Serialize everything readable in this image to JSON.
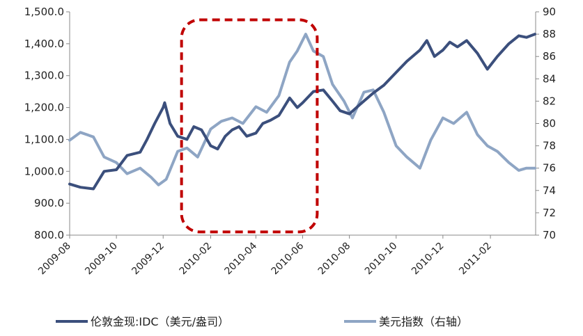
{
  "chart_data": {
    "type": "line",
    "title": "",
    "x_range": [
      "2009-08",
      "2011-03"
    ],
    "x_ticks": [
      "2009-08",
      "2009-10",
      "2009-12",
      "2010-02",
      "2010-04",
      "2010-06",
      "2010-08",
      "2010-10",
      "2010-12",
      "2011-02"
    ],
    "y_left": {
      "range": [
        800,
        1500
      ],
      "ticks": [
        "800.0",
        "900.0",
        "1,000.0",
        "1,100.0",
        "1,200.0",
        "1,300.0",
        "1,400.0",
        "1,500.0"
      ]
    },
    "y_right": {
      "range": [
        70,
        90
      ],
      "ticks": [
        "70",
        "72",
        "74",
        "76",
        "78",
        "80",
        "82",
        "84",
        "86",
        "88",
        "90"
      ]
    },
    "grid": false,
    "legend_position": "bottom",
    "series": [
      {
        "name": "伦敦金现:IDC（美元/盎司）",
        "axis": "left",
        "color": "#3b4f7c",
        "points": [
          [
            "2009-08-01",
            960
          ],
          [
            "2009-08-15",
            950
          ],
          [
            "2009-09-01",
            945
          ],
          [
            "2009-09-15",
            1000
          ],
          [
            "2009-10-01",
            1005
          ],
          [
            "2009-10-15",
            1050
          ],
          [
            "2009-11-01",
            1060
          ],
          [
            "2009-11-10",
            1100
          ],
          [
            "2009-11-20",
            1150
          ],
          [
            "2009-12-01",
            1200
          ],
          [
            "2009-12-03",
            1215
          ],
          [
            "2009-12-10",
            1150
          ],
          [
            "2009-12-20",
            1110
          ],
          [
            "2010-01-01",
            1100
          ],
          [
            "2010-01-10",
            1140
          ],
          [
            "2010-01-20",
            1130
          ],
          [
            "2010-02-01",
            1080
          ],
          [
            "2010-02-10",
            1070
          ],
          [
            "2010-02-20",
            1110
          ],
          [
            "2010-03-01",
            1130
          ],
          [
            "2010-03-10",
            1140
          ],
          [
            "2010-03-20",
            1110
          ],
          [
            "2010-04-01",
            1120
          ],
          [
            "2010-04-10",
            1150
          ],
          [
            "2010-04-20",
            1160
          ],
          [
            "2010-05-01",
            1175
          ],
          [
            "2010-05-15",
            1230
          ],
          [
            "2010-05-25",
            1200
          ],
          [
            "2010-06-01",
            1215
          ],
          [
            "2010-06-15",
            1250
          ],
          [
            "2010-06-28",
            1255
          ],
          [
            "2010-07-10",
            1220
          ],
          [
            "2010-07-20",
            1190
          ],
          [
            "2010-08-01",
            1180
          ],
          [
            "2010-08-15",
            1210
          ],
          [
            "2010-09-01",
            1245
          ],
          [
            "2010-09-15",
            1270
          ],
          [
            "2010-10-01",
            1310
          ],
          [
            "2010-10-15",
            1345
          ],
          [
            "2010-11-01",
            1380
          ],
          [
            "2010-11-10",
            1410
          ],
          [
            "2010-11-20",
            1360
          ],
          [
            "2010-12-01",
            1380
          ],
          [
            "2010-12-10",
            1405
          ],
          [
            "2010-12-20",
            1390
          ],
          [
            "2011-01-01",
            1410
          ],
          [
            "2011-01-15",
            1370
          ],
          [
            "2011-01-28",
            1320
          ],
          [
            "2011-02-10",
            1360
          ],
          [
            "2011-02-25",
            1400
          ],
          [
            "2011-03-10",
            1425
          ],
          [
            "2011-03-20",
            1420
          ],
          [
            "2011-03-31",
            1430
          ]
        ]
      },
      {
        "name": "美元指数（右轴）",
        "axis": "right",
        "color": "#8ea5c4",
        "points": [
          [
            "2009-08-01",
            78.5
          ],
          [
            "2009-08-15",
            79.2
          ],
          [
            "2009-09-01",
            78.8
          ],
          [
            "2009-09-15",
            77.0
          ],
          [
            "2009-10-01",
            76.5
          ],
          [
            "2009-10-15",
            75.5
          ],
          [
            "2009-11-01",
            76.0
          ],
          [
            "2009-11-15",
            75.2
          ],
          [
            "2009-11-25",
            74.5
          ],
          [
            "2009-12-05",
            75.0
          ],
          [
            "2009-12-20",
            77.5
          ],
          [
            "2010-01-01",
            77.8
          ],
          [
            "2010-01-15",
            77.0
          ],
          [
            "2010-02-01",
            79.5
          ],
          [
            "2010-02-15",
            80.2
          ],
          [
            "2010-03-01",
            80.5
          ],
          [
            "2010-03-15",
            80.0
          ],
          [
            "2010-04-01",
            81.5
          ],
          [
            "2010-04-15",
            81.0
          ],
          [
            "2010-05-01",
            82.5
          ],
          [
            "2010-05-15",
            85.5
          ],
          [
            "2010-05-25",
            86.5
          ],
          [
            "2010-06-05",
            88.0
          ],
          [
            "2010-06-15",
            86.5
          ],
          [
            "2010-06-28",
            86.0
          ],
          [
            "2010-07-10",
            83.5
          ],
          [
            "2010-07-25",
            82.0
          ],
          [
            "2010-08-05",
            80.5
          ],
          [
            "2010-08-20",
            82.8
          ],
          [
            "2010-09-01",
            83.0
          ],
          [
            "2010-09-15",
            81.0
          ],
          [
            "2010-10-01",
            78.0
          ],
          [
            "2010-10-15",
            77.0
          ],
          [
            "2010-11-01",
            76.0
          ],
          [
            "2010-11-15",
            78.5
          ],
          [
            "2010-12-01",
            80.5
          ],
          [
            "2010-12-15",
            80.0
          ],
          [
            "2011-01-01",
            81.0
          ],
          [
            "2011-01-15",
            79.0
          ],
          [
            "2011-01-28",
            78.0
          ],
          [
            "2011-02-10",
            77.5
          ],
          [
            "2011-02-25",
            76.5
          ],
          [
            "2011-03-10",
            75.8
          ],
          [
            "2011-03-20",
            76.0
          ],
          [
            "2011-03-31",
            76.0
          ]
        ]
      }
    ],
    "annotation": {
      "type": "dashed-rounded-rect",
      "color": "#c00000",
      "x_from": "2009-12-25",
      "x_to": "2010-06-20",
      "y_left_from": 810,
      "y_left_to": 1475
    }
  }
}
